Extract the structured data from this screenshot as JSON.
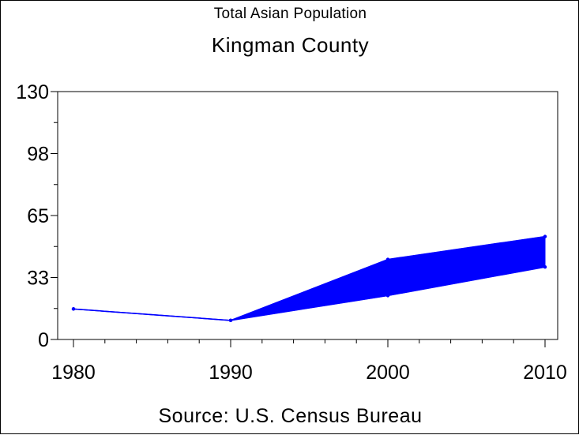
{
  "header": {
    "subtitle": "Total Asian Population",
    "title": "Kingman County"
  },
  "footer": {
    "source": "Source: U.S. Census Bureau"
  },
  "chart_data": {
    "type": "area",
    "title": "Kingman County",
    "subtitle": "Total Asian Population",
    "xlabel": "",
    "ylabel": "",
    "x": [
      1980,
      1990,
      2000,
      2010
    ],
    "x_tick_labels": [
      "1980",
      "1990",
      "2000",
      "2010"
    ],
    "y_tick_labels": [
      "0",
      "33",
      "65",
      "98",
      "130"
    ],
    "y_ticks": [
      0,
      32.5,
      65,
      97.5,
      130
    ],
    "ylim": [
      0,
      130
    ],
    "xlim": [
      1980,
      2010
    ],
    "grid": false,
    "series": [
      {
        "values": [
          16,
          10,
          42,
          54
        ]
      },
      {
        "values": [
          16,
          10,
          23,
          38
        ]
      }
    ],
    "band_fill": true,
    "colors": {
      "series": "#0000ff",
      "axis": "#000000"
    }
  }
}
